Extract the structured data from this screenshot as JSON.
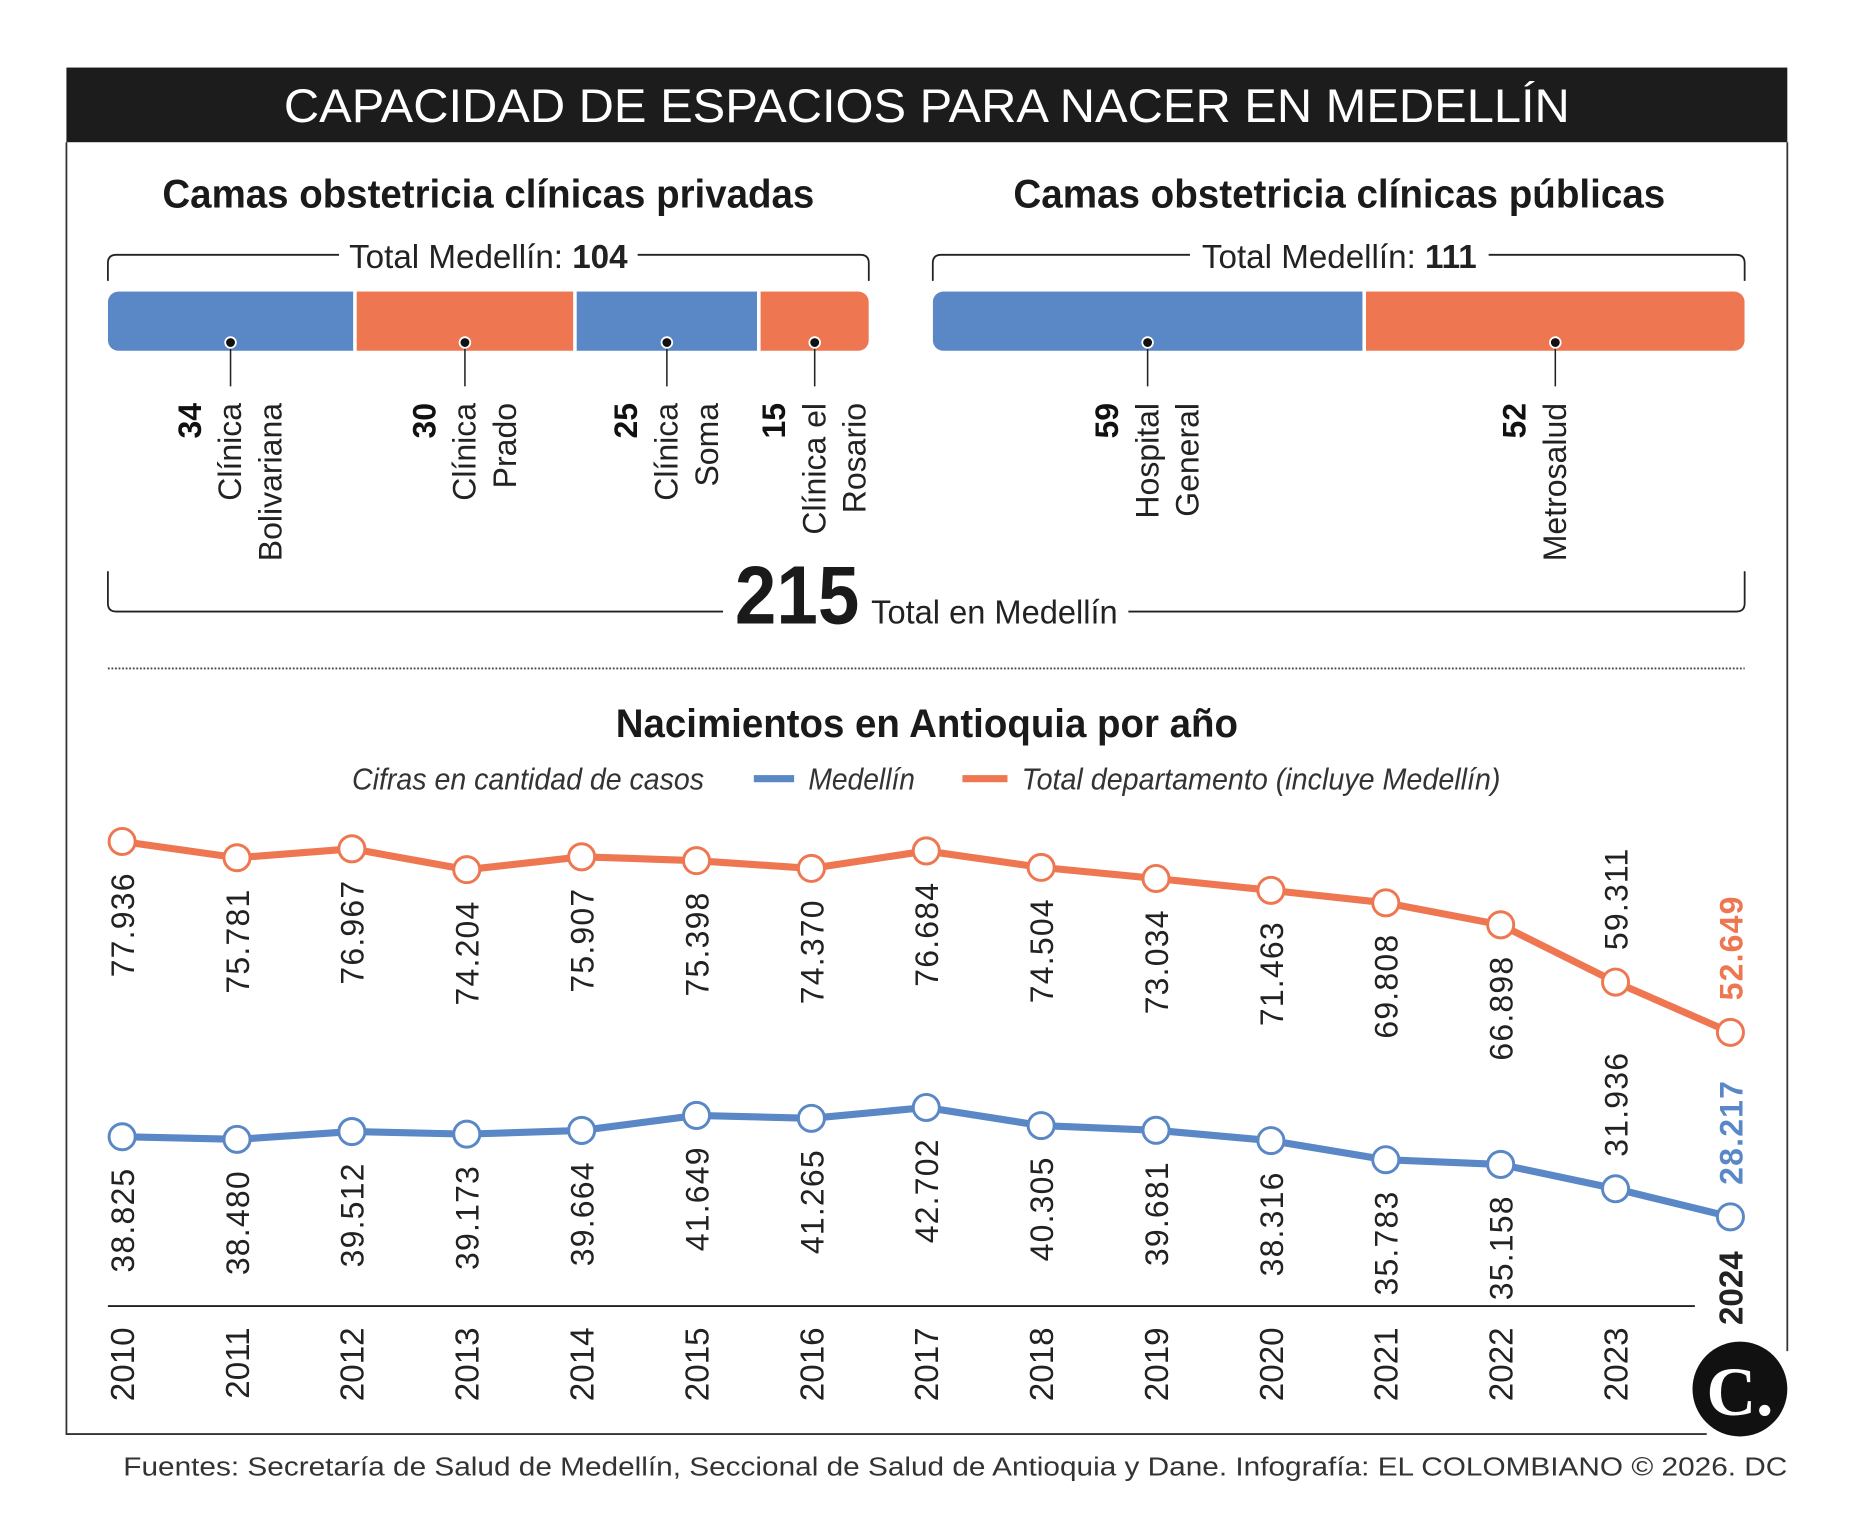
{
  "header": {
    "title": "CAPACIDAD DE ESPACIOS PARA NACER EN MEDELLÍN"
  },
  "colors": {
    "blue": "#5a87c6",
    "orange": "#ee7752",
    "header_bg": "#1c1c1c"
  },
  "beds": {
    "private": {
      "title": "Camas obstetricia clínicas privadas",
      "total_label": "Total Medellín:",
      "total": "104",
      "items": [
        {
          "value": "34",
          "line1": "Clínica",
          "line2": "Bolivariana",
          "color": "blue"
        },
        {
          "value": "30",
          "line1": "Clínica",
          "line2": "Prado",
          "color": "orange"
        },
        {
          "value": "25",
          "line1": "Clínica",
          "line2": "Soma",
          "color": "blue"
        },
        {
          "value": "15",
          "line1": "Clínica el",
          "line2": "Rosario",
          "color": "orange"
        }
      ]
    },
    "public": {
      "title": "Camas obstetricia clínicas públicas",
      "total_label": "Total Medellín:",
      "total": "111",
      "items": [
        {
          "value": "59",
          "line1": "Hospital",
          "line2": "General",
          "color": "blue"
        },
        {
          "value": "52",
          "line1": "Metrosalud",
          "line2": "",
          "color": "orange"
        }
      ]
    },
    "grand_total": "215",
    "grand_total_label": "Total en Medellín"
  },
  "chart_data": {
    "type": "line",
    "title": "Nacimientos en Antioquia por año",
    "subtitle": "Cifras en cantidad de casos",
    "x": [
      "2010",
      "2011",
      "2012",
      "2013",
      "2014",
      "2015",
      "2016",
      "2017",
      "2018",
      "2019",
      "2020",
      "2021",
      "2022",
      "2023",
      "2024"
    ],
    "series": [
      {
        "name": "Medellín",
        "color": "#5a87c6",
        "values": [
          38825,
          38480,
          39512,
          39173,
          39664,
          41649,
          41265,
          42702,
          40305,
          39681,
          38316,
          35783,
          35158,
          31936,
          28217
        ],
        "labels": [
          "38.825",
          "38.480",
          "39.512",
          "39.173",
          "39.664",
          "41.649",
          "41.265",
          "42.702",
          "40.305",
          "39.681",
          "38.316",
          "35.783",
          "35.158",
          "31.936",
          "28.217"
        ]
      },
      {
        "name": "Total departamento (incluye Medellín)",
        "color": "#ee7752",
        "values": [
          77936,
          75781,
          76967,
          74204,
          75907,
          75398,
          74370,
          76684,
          74504,
          73034,
          71463,
          69808,
          66898,
          59311,
          52649
        ],
        "labels": [
          "77.936",
          "75.781",
          "76.967",
          "74.204",
          "75.907",
          "75.398",
          "74.370",
          "76.684",
          "74.504",
          "73.034",
          "71.463",
          "69.808",
          "66.898",
          "59.311",
          "52.649"
        ]
      }
    ],
    "legend": "top",
    "grid": false
  },
  "footer": {
    "source": "Fuentes: Secretaría de Salud de Medellín, Seccional de Salud de Antioquia y Dane. Infografía: EL COLOMBIANO © 2026. DC"
  },
  "logo": {
    "text": "C."
  }
}
